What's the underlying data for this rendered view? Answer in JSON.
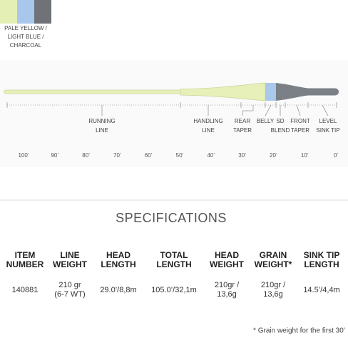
{
  "colors": {
    "label": [
      "PALE YELLOW /",
      "LIGHT BLUE /",
      "CHARCOAL"
    ]
  },
  "diagram": {
    "sections": [
      [
        "RUNNING",
        "LINE"
      ],
      [
        "HANDLING",
        "LINE"
      ],
      [
        "REAR",
        "TAPER"
      ],
      [
        "BELLY"
      ],
      [
        "SD",
        "BLEND"
      ],
      [
        "FRONT",
        "TAPER"
      ],
      [
        "LEVEL",
        "SINK TIP"
      ]
    ],
    "distances": [
      "100’",
      "90’",
      "80’",
      "70’",
      "60’",
      "50’",
      "40’",
      "30’",
      "20’",
      "10’",
      "0’"
    ]
  },
  "specifications": {
    "title": "SPECIFICATIONS",
    "headers": [
      [
        "ITEM",
        "NUMBER"
      ],
      [
        "LINE",
        "WEIGHT"
      ],
      [
        "HEAD",
        "LENGTH"
      ],
      [
        "TOTAL",
        "LENGTH"
      ],
      [
        "HEAD",
        "WEIGHT"
      ],
      [
        "GRAIN",
        "WEIGHT*"
      ],
      [
        "SINK TIP",
        "LENGTH"
      ]
    ],
    "rows": [
      [
        [
          "140881"
        ],
        [
          "210 gr",
          "(6-7 WT)"
        ],
        [
          "29.0’/8,8m"
        ],
        [
          "105.0’/32,1m"
        ],
        [
          "210gr /",
          "13,6g"
        ],
        [
          "210gr /",
          "13,6g"
        ],
        [
          "14.5’/4,4m"
        ]
      ]
    ],
    "footnote": "* Grain weight for the first 30’"
  }
}
